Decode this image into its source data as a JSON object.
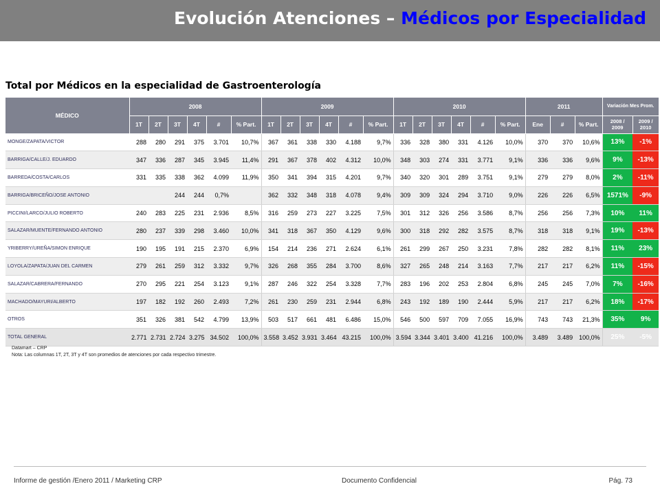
{
  "title": {
    "part1": "Evolución Atenciones – ",
    "part2": "Médicos por Especialidad"
  },
  "subtitle": "Total por Médicos en la especialidad de Gastroenterología",
  "table": {
    "header_medico": "MÉDICO",
    "years": [
      "2008",
      "2009",
      "2010",
      "2011"
    ],
    "var_label": "Variación Mes Prom.",
    "sub_q": [
      "1T",
      "2T",
      "3T",
      "4T",
      "#",
      "% Part."
    ],
    "sub_2010_part": "% Part.",
    "sub_2011": [
      "Ene",
      "#",
      "% Part."
    ],
    "var_sub": [
      "2008 / 2009",
      "2009 / 2010"
    ],
    "rows": [
      {
        "name": "MONGE/ZAPATA/VICTOR",
        "y2008": [
          "288",
          "280",
          "291",
          "375",
          "3.701",
          "10,7%"
        ],
        "y2009": [
          "367",
          "361",
          "338",
          "330",
          "4.188",
          "9,7%"
        ],
        "y2010": [
          "336",
          "328",
          "380",
          "331",
          "4.126",
          "10,0%"
        ],
        "y2011": [
          "370",
          "370",
          "10,6%"
        ],
        "v1": "13%",
        "v2": "-1%"
      },
      {
        "name": "BARRIGA/CALLE/J. EDUARDO",
        "y2008": [
          "347",
          "336",
          "287",
          "345",
          "3.945",
          "11,4%"
        ],
        "y2009": [
          "291",
          "367",
          "378",
          "402",
          "4.312",
          "10,0%"
        ],
        "y2010": [
          "348",
          "303",
          "274",
          "331",
          "3.771",
          "9,1%"
        ],
        "y2011": [
          "336",
          "336",
          "9,6%"
        ],
        "v1": "9%",
        "v2": "-13%"
      },
      {
        "name": "BARREDA/COSTA/CARLOS",
        "y2008": [
          "331",
          "335",
          "338",
          "362",
          "4.099",
          "11,9%"
        ],
        "y2009": [
          "350",
          "341",
          "394",
          "315",
          "4.201",
          "9,7%"
        ],
        "y2010": [
          "340",
          "320",
          "301",
          "289",
          "3.751",
          "9,1%"
        ],
        "y2011": [
          "279",
          "279",
          "8,0%"
        ],
        "v1": "2%",
        "v2": "-11%"
      },
      {
        "name": "BARRIGA/BRICEÑO/JOSE ANTONIO",
        "y2008": [
          "",
          "",
          "244",
          "244",
          "0,7%",
          ""
        ],
        "y2009": [
          "362",
          "332",
          "348",
          "318",
          "4.078",
          "9,4%"
        ],
        "y2010": [
          "309",
          "309",
          "324",
          "294",
          "3.710",
          "9,0%"
        ],
        "y2011": [
          "226",
          "226",
          "6,5%"
        ],
        "v1": "1571%",
        "v2": "-9%"
      },
      {
        "name": "PICCINI/LARCO/JULIO ROBERTO",
        "y2008": [
          "240",
          "283",
          "225",
          "231",
          "2.936",
          "8,5%"
        ],
        "y2009": [
          "316",
          "259",
          "273",
          "227",
          "3.225",
          "7,5%"
        ],
        "y2010": [
          "301",
          "312",
          "326",
          "256",
          "3.586",
          "8,7%"
        ],
        "y2011": [
          "256",
          "256",
          "7,3%"
        ],
        "v1": "10%",
        "v2": "11%"
      },
      {
        "name": "SALAZAR/MUENTE/FERNANDO ANTONIO",
        "y2008": [
          "280",
          "237",
          "339",
          "298",
          "3.460",
          "10,0%"
        ],
        "y2009": [
          "341",
          "318",
          "367",
          "350",
          "4.129",
          "9,6%"
        ],
        "y2010": [
          "300",
          "318",
          "292",
          "282",
          "3.575",
          "8,7%"
        ],
        "y2011": [
          "318",
          "318",
          "9,1%"
        ],
        "v1": "19%",
        "v2": "-13%"
      },
      {
        "name": "YRIBERRY/UREÑA/SIMON ENRIQUE",
        "y2008": [
          "190",
          "195",
          "191",
          "215",
          "2.370",
          "6,9%"
        ],
        "y2009": [
          "154",
          "214",
          "236",
          "271",
          "2.624",
          "6,1%"
        ],
        "y2010": [
          "261",
          "299",
          "267",
          "250",
          "3.231",
          "7,8%"
        ],
        "y2011": [
          "282",
          "282",
          "8,1%"
        ],
        "v1": "11%",
        "v2": "23%"
      },
      {
        "name": "LOYOLA/ZAPATA/JUAN DEL CARMEN",
        "y2008": [
          "279",
          "261",
          "259",
          "312",
          "3.332",
          "9,7%"
        ],
        "y2009": [
          "326",
          "268",
          "355",
          "284",
          "3.700",
          "8,6%"
        ],
        "y2010": [
          "327",
          "265",
          "248",
          "214",
          "3.163",
          "7,7%"
        ],
        "y2011": [
          "217",
          "217",
          "6,2%"
        ],
        "v1": "11%",
        "v2": "-15%"
      },
      {
        "name": "SALAZAR/CABRERA/FERNANDO",
        "y2008": [
          "270",
          "295",
          "221",
          "254",
          "3.123",
          "9,1%"
        ],
        "y2009": [
          "287",
          "246",
          "322",
          "254",
          "3.328",
          "7,7%"
        ],
        "y2010": [
          "283",
          "196",
          "202",
          "253",
          "2.804",
          "6,8%"
        ],
        "y2011": [
          "245",
          "245",
          "7,0%"
        ],
        "v1": "7%",
        "v2": "-16%"
      },
      {
        "name": "MACHADO/MAYURI/ALBERTO",
        "y2008": [
          "197",
          "182",
          "192",
          "260",
          "2.493",
          "7,2%"
        ],
        "y2009": [
          "261",
          "230",
          "259",
          "231",
          "2.944",
          "6,8%"
        ],
        "y2010": [
          "243",
          "192",
          "189",
          "190",
          "2.444",
          "5,9%"
        ],
        "y2011": [
          "217",
          "217",
          "6,2%"
        ],
        "v1": "18%",
        "v2": "-17%"
      },
      {
        "name": "OTROS",
        "y2008": [
          "351",
          "326",
          "381",
          "542",
          "4.799",
          "13,9%"
        ],
        "y2009": [
          "503",
          "517",
          "661",
          "481",
          "6.486",
          "15,0%"
        ],
        "y2010": [
          "546",
          "500",
          "597",
          "709",
          "7.055",
          "16,9%"
        ],
        "y2011": [
          "743",
          "743",
          "21,3%"
        ],
        "v1": "35%",
        "v2": "9%"
      },
      {
        "name": "TOTAL GENERAL",
        "y2008": [
          "2.771",
          "2.731",
          "2.724",
          "3.275",
          "34.502",
          "100,0%"
        ],
        "y2009": [
          "3.558",
          "3.452",
          "3.931",
          "3.464",
          "43.215",
          "100,0%"
        ],
        "y2010": [
          "3.594",
          "3.344",
          "3.401",
          "3.400",
          "41.216",
          "100,0%"
        ],
        "y2011": [
          "3.489",
          "3.489",
          "100,0%"
        ],
        "v1": "25%",
        "v2": "-5%",
        "total": true
      }
    ]
  },
  "notes": {
    "line1": "Datamart – CRP",
    "line2": "Nota: Las columnas 1T, 2T,  3T y 4T  son promedios de atenciones por cada respectivo trimestre."
  },
  "footer": {
    "left": "Informe de gestión /Enero 2011 / Marketing CRP",
    "center": "Documento Confidencial",
    "right": "Pág. 73"
  },
  "colors": {
    "header_bg": "#7f8290",
    "var_header_bg": "#2b4ea0",
    "positive": "#13b34a",
    "negative": "#ee2a1b",
    "title_accent": "#0000ff"
  }
}
